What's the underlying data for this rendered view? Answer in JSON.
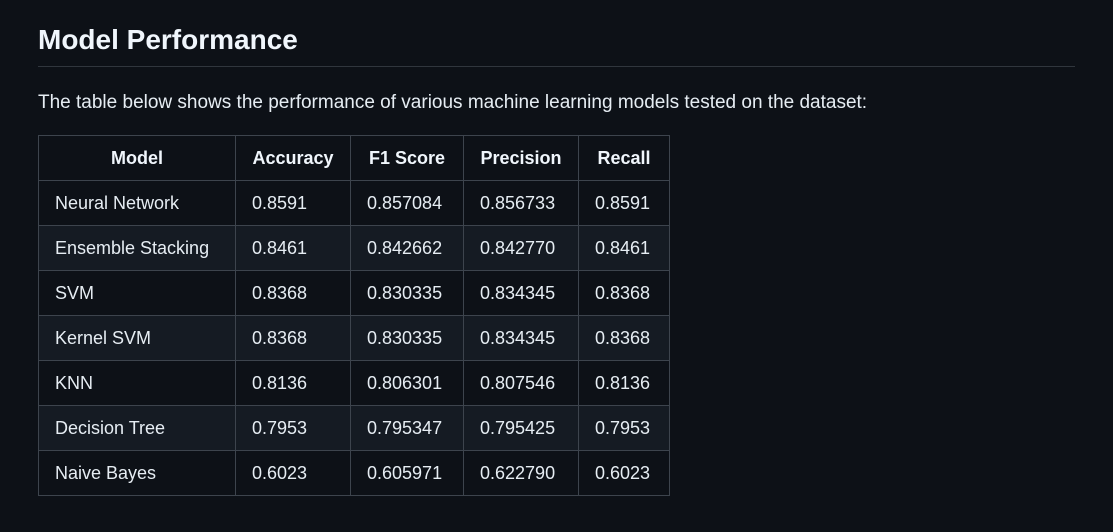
{
  "heading": "Model Performance",
  "intro": "The table below shows the performance of various machine learning models tested on the dataset:",
  "table": {
    "headers": [
      "Model",
      "Accuracy",
      "F1 Score",
      "Precision",
      "Recall"
    ],
    "rows": [
      [
        "Neural Network",
        "0.8591",
        "0.857084",
        "0.856733",
        "0.8591"
      ],
      [
        "Ensemble Stacking",
        "0.8461",
        "0.842662",
        "0.842770",
        "0.8461"
      ],
      [
        "SVM",
        "0.8368",
        "0.830335",
        "0.834345",
        "0.8368"
      ],
      [
        "Kernel SVM",
        "0.8368",
        "0.830335",
        "0.834345",
        "0.8368"
      ],
      [
        "KNN",
        "0.8136",
        "0.806301",
        "0.807546",
        "0.8136"
      ],
      [
        "Decision Tree",
        "0.7953",
        "0.795347",
        "0.795425",
        "0.7953"
      ],
      [
        "Naive Bayes",
        "0.6023",
        "0.605971",
        "0.622790",
        "0.6023"
      ]
    ]
  }
}
